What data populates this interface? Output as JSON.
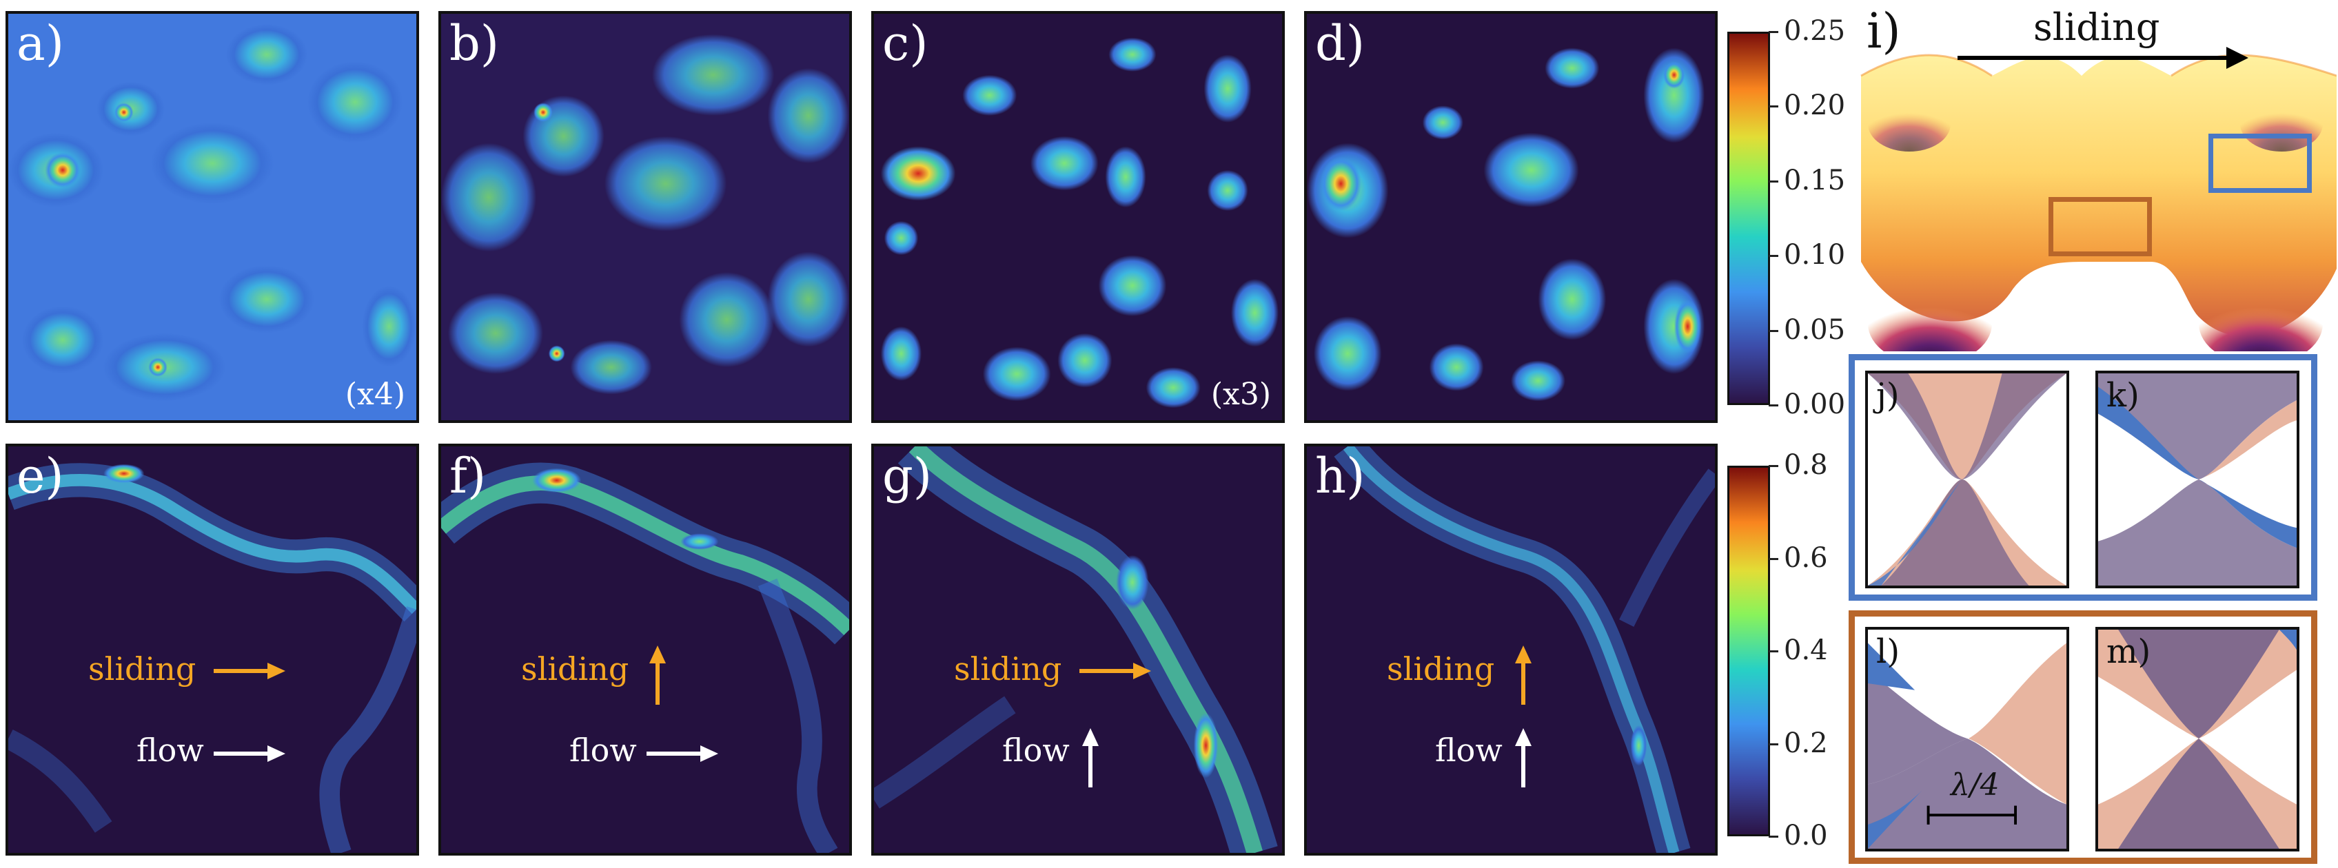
{
  "panels_top": [
    {
      "id": "a",
      "label": "a)",
      "note": "(x4)"
    },
    {
      "id": "b",
      "label": "b)",
      "note": ""
    },
    {
      "id": "c",
      "label": "c)",
      "note": "(x3)"
    },
    {
      "id": "d",
      "label": "d)",
      "note": ""
    }
  ],
  "panels_bottom": [
    {
      "id": "e",
      "label": "e)",
      "sliding": "sliding",
      "flow": "flow",
      "sliding_dir": "right",
      "flow_dir": "right"
    },
    {
      "id": "f",
      "label": "f)",
      "sliding": "sliding",
      "flow": "flow",
      "sliding_dir": "up",
      "flow_dir": "right"
    },
    {
      "id": "g",
      "label": "g)",
      "sliding": "sliding",
      "flow": "flow",
      "sliding_dir": "right",
      "flow_dir": "up"
    },
    {
      "id": "h",
      "label": "h)",
      "sliding": "sliding",
      "flow": "flow",
      "sliding_dir": "up",
      "flow_dir": "up"
    }
  ],
  "colorbar_top": {
    "ticks": [
      "0.25",
      "0.20",
      "0.15",
      "0.10",
      "0.05",
      "0.00"
    ]
  },
  "colorbar_bottom": {
    "ticks": [
      "0.8",
      "0.6",
      "0.4",
      "0.2",
      "0.0"
    ]
  },
  "panel_i": {
    "label": "i)",
    "arrow_text": "sliding"
  },
  "inset_group_blue": {
    "color": "#4a78c4",
    "panels": [
      {
        "label": "j)"
      },
      {
        "label": "k)"
      }
    ]
  },
  "inset_group_orange": {
    "color": "#b8662a",
    "panels": [
      {
        "label": "l)"
      },
      {
        "label": "m)"
      }
    ],
    "scale_label": "λ/4"
  },
  "colors": {
    "sliding_arrow": "#f5a623",
    "flow_arrow": "#ffffff",
    "dark_bg": "#24113f"
  }
}
